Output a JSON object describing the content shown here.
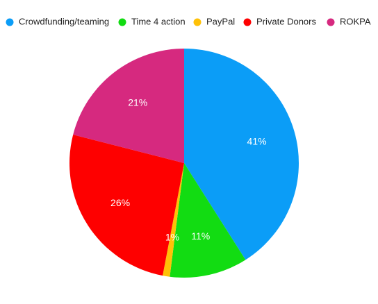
{
  "chart_data": {
    "type": "pie",
    "categories": [
      "Crowdfunding/teaming",
      "Time 4 action",
      "PayPal",
      "Private Donors",
      "ROKPA"
    ],
    "values": [
      41,
      11,
      1,
      26,
      21
    ],
    "value_labels": [
      "41%",
      "11%",
      "1%",
      "26%",
      "21%"
    ],
    "colors": [
      "#0b9df7",
      "#12dc12",
      "#ffc107",
      "#fe0000",
      "#d6297f"
    ],
    "legend": "top"
  }
}
